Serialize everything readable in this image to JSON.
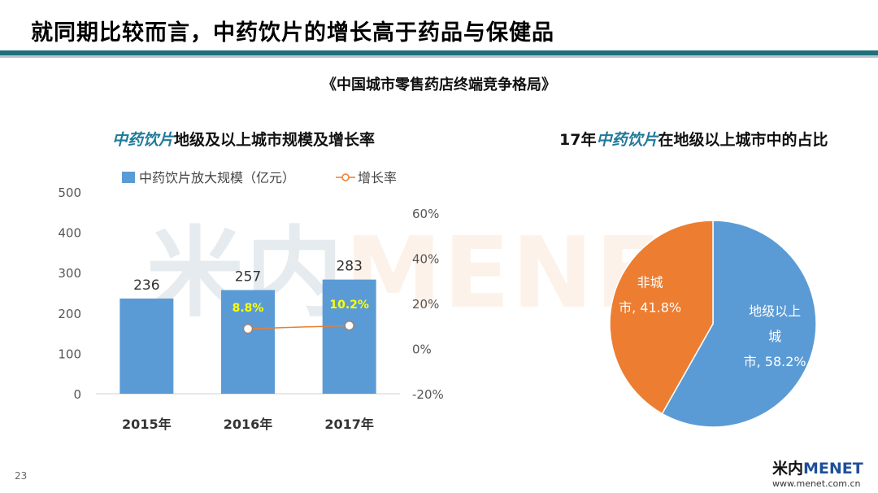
{
  "header": {
    "title": "就同期比较而言，中药饮片的增长高于药品与保健品",
    "source": "《中国城市零售药店终端竞争格局》"
  },
  "left_chart_title": {
    "em": "中药饮片",
    "rest": "地级及以上城市规模及增长率"
  },
  "right_chart_title": {
    "prefix": "17年",
    "em": "中药饮片",
    "rest": "在地级以上城市中的占比"
  },
  "watermark": {
    "part_a": "米内",
    "part_b": "MENET"
  },
  "footer": {
    "page": "23",
    "logo_cn": "米内",
    "logo_en": "MENET",
    "url": "www.menet.com.cn"
  },
  "colors": {
    "bar": "#5b9bd5",
    "pie_blue": "#5b9bd5",
    "pie_orange": "#ed7d31",
    "line": "#ed7d31",
    "growth_label": "#ffff00",
    "accent": "#1f6f7c"
  },
  "chart_data": [
    {
      "type": "bar",
      "categories": [
        "2015年",
        "2016年",
        "2017年"
      ],
      "series": [
        {
          "name": "中药饮片放大规模（亿元）",
          "type": "bar",
          "axis": "left",
          "values": [
            236,
            257,
            283
          ]
        },
        {
          "name": "增长率",
          "type": "line",
          "axis": "right",
          "values": [
            null,
            8.8,
            10.2
          ]
        }
      ],
      "bar_labels": [
        "236",
        "257",
        "283"
      ],
      "line_labels": [
        "",
        "8.8%",
        "10.2%"
      ],
      "y_left": {
        "min": 0,
        "max": 500,
        "ticks": [
          "0",
          "100",
          "200",
          "300",
          "400",
          "500"
        ]
      },
      "y_right": {
        "min": -20,
        "max": 60,
        "ticks": [
          "-20%",
          "0%",
          "20%",
          "40%",
          "60%"
        ]
      },
      "legend_placement": "top",
      "grid": false
    },
    {
      "type": "pie",
      "slices": [
        {
          "label_line1": "地级以上",
          "label_line2": "城",
          "label_line3": "市, 58.2%",
          "value": 58.2
        },
        {
          "label_line1": "非城",
          "label_line2": "市, 41.8%",
          "value": 41.8
        }
      ]
    }
  ]
}
